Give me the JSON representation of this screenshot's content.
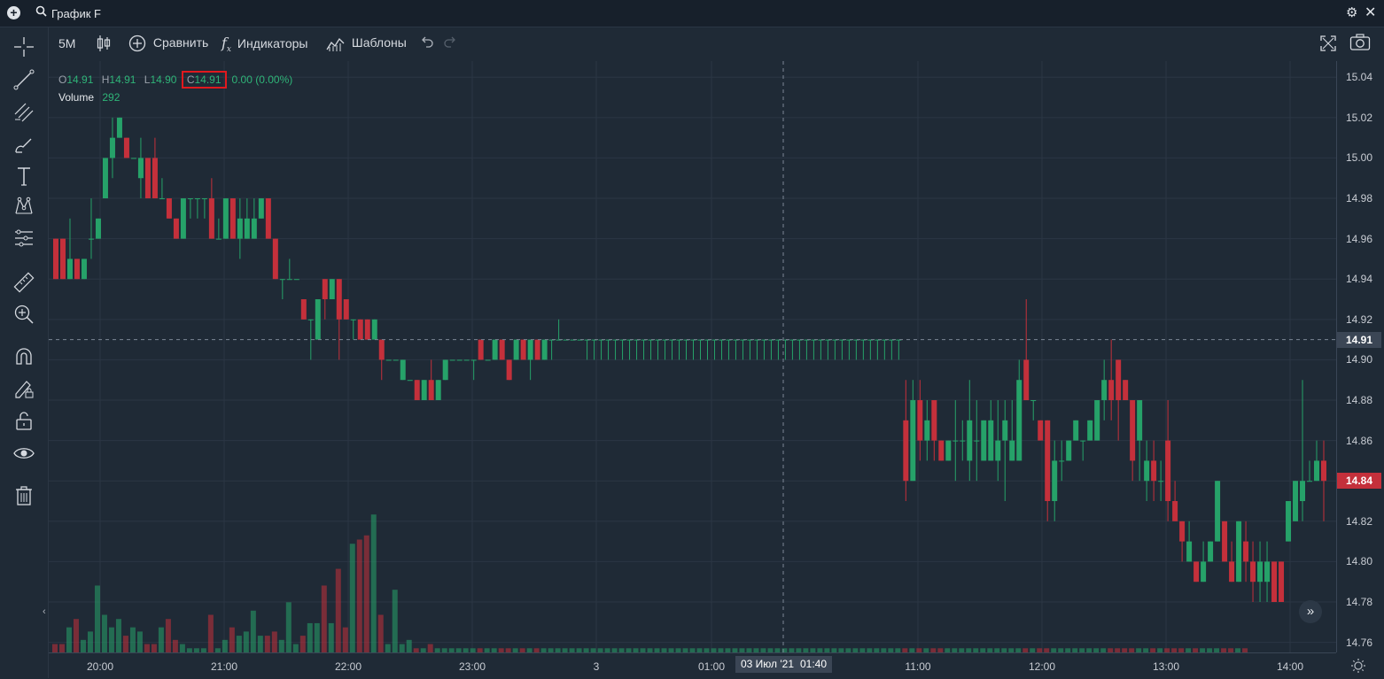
{
  "window": {
    "title": "График F"
  },
  "toolbar": {
    "interval": "5M",
    "compare_label": "Сравнить",
    "indicators_label": "Индикаторы",
    "templates_label": "Шаблоны"
  },
  "legend": {
    "open_key": "O",
    "open": "14.91",
    "high_key": "H",
    "high": "14.91",
    "low_key": "L",
    "low": "14.90",
    "close_key": "C",
    "close": "14.91",
    "change": "0.00 (0.00%)",
    "volume_label": "Volume",
    "volume_value": "292"
  },
  "price_badges": {
    "crosshair_price": "14.91",
    "last_price": "14.84"
  },
  "crosshair": {
    "date": "03 Июл '21",
    "time": "01:40"
  },
  "colors": {
    "up": "#26a269",
    "down": "#c4303b",
    "background": "#1f2a36",
    "grid": "#2b3644",
    "highlight": "#e0191e"
  },
  "chart_data": {
    "type": "candlestick",
    "y_ticks": [
      "15.04",
      "15.02",
      "15.00",
      "14.98",
      "14.96",
      "14.94",
      "14.92",
      "14.90",
      "14.88",
      "14.86",
      "14.84",
      "14.82",
      "14.80",
      "14.78",
      "14.76"
    ],
    "x_ticks": [
      "20:00",
      "21:00",
      "22:00",
      "23:00",
      "3",
      "01:00",
      "11:00",
      "12:00",
      "13:00",
      "14:00"
    ],
    "ylim": [
      14.755,
      15.048
    ],
    "candles": [
      [
        14.96,
        14.94,
        14.96,
        14.94
      ],
      [
        14.96,
        14.94,
        14.96,
        14.94
      ],
      [
        14.94,
        14.95,
        14.97,
        14.94
      ],
      [
        14.95,
        14.94,
        14.95,
        14.94
      ],
      [
        14.94,
        14.95,
        14.95,
        14.94
      ],
      [
        14.96,
        14.96,
        14.98,
        14.95
      ],
      [
        14.96,
        14.97,
        14.97,
        14.96
      ],
      [
        14.98,
        15.0,
        15.0,
        14.98
      ],
      [
        15.0,
        15.01,
        15.02,
        14.99
      ],
      [
        15.01,
        15.02,
        15.02,
        15.01
      ],
      [
        15.01,
        15.0,
        15.01,
        15.0
      ],
      [
        15.0,
        15.0,
        15.0,
        15.0
      ],
      [
        14.99,
        15.0,
        15.01,
        14.98
      ],
      [
        15.0,
        14.98,
        15.0,
        14.98
      ],
      [
        15.0,
        14.98,
        15.01,
        14.98
      ],
      [
        14.98,
        14.98,
        14.99,
        14.98
      ],
      [
        14.98,
        14.97,
        14.98,
        14.97
      ],
      [
        14.97,
        14.96,
        14.97,
        14.96
      ],
      [
        14.96,
        14.98,
        14.98,
        14.96
      ],
      [
        14.98,
        14.98,
        14.98,
        14.97
      ],
      [
        14.98,
        14.98,
        14.98,
        14.97
      ],
      [
        14.98,
        14.98,
        14.98,
        14.97
      ],
      [
        14.98,
        14.96,
        14.99,
        14.96
      ],
      [
        14.96,
        14.96,
        14.97,
        14.96
      ],
      [
        14.96,
        14.98,
        14.98,
        14.96
      ],
      [
        14.98,
        14.96,
        14.98,
        14.96
      ],
      [
        14.96,
        14.97,
        14.98,
        14.95
      ],
      [
        14.96,
        14.97,
        14.98,
        14.96
      ],
      [
        14.96,
        14.97,
        14.98,
        14.96
      ],
      [
        14.97,
        14.98,
        14.98,
        14.97
      ],
      [
        14.98,
        14.96,
        14.98,
        14.96
      ],
      [
        14.96,
        14.94,
        14.96,
        14.94
      ],
      [
        14.94,
        14.94,
        14.94,
        14.93
      ],
      [
        14.94,
        14.94,
        14.95,
        14.94
      ],
      [
        14.94,
        14.94,
        14.94,
        14.94
      ],
      [
        14.93,
        14.92,
        14.93,
        14.92
      ],
      [
        14.92,
        14.92,
        14.92,
        14.9
      ],
      [
        14.91,
        14.93,
        14.93,
        14.91
      ],
      [
        14.94,
        14.93,
        14.94,
        14.92
      ],
      [
        14.93,
        14.94,
        14.94,
        14.93
      ],
      [
        14.94,
        14.92,
        14.94,
        14.9
      ],
      [
        14.93,
        14.92,
        14.93,
        14.92
      ],
      [
        14.92,
        14.92,
        14.92,
        14.91
      ],
      [
        14.92,
        14.91,
        14.92,
        14.91
      ],
      [
        14.92,
        14.91,
        14.92,
        14.91
      ],
      [
        14.91,
        14.92,
        14.92,
        14.91
      ],
      [
        14.91,
        14.9,
        14.91,
        14.89
      ],
      [
        14.9,
        14.9,
        14.9,
        14.9
      ],
      [
        14.9,
        14.9,
        14.9,
        14.9
      ],
      [
        14.89,
        14.9,
        14.9,
        14.89
      ],
      [
        14.89,
        14.89,
        14.89,
        14.89
      ],
      [
        14.89,
        14.88,
        14.89,
        14.88
      ],
      [
        14.88,
        14.89,
        14.89,
        14.88
      ],
      [
        14.89,
        14.88,
        14.9,
        14.88
      ],
      [
        14.88,
        14.89,
        14.89,
        14.88
      ],
      [
        14.89,
        14.9,
        14.9,
        14.89
      ],
      [
        14.9,
        14.9,
        14.9,
        14.9
      ],
      [
        14.9,
        14.9,
        14.9,
        14.9
      ],
      [
        14.9,
        14.9,
        14.9,
        14.9
      ],
      [
        14.9,
        14.9,
        14.9,
        14.89
      ],
      [
        14.91,
        14.9,
        14.91,
        14.9
      ],
      [
        14.9,
        14.9,
        14.9,
        14.9
      ],
      [
        14.9,
        14.91,
        14.91,
        14.9
      ],
      [
        14.91,
        14.9,
        14.91,
        14.9
      ],
      [
        14.9,
        14.89,
        14.9,
        14.89
      ],
      [
        14.9,
        14.91,
        14.91,
        14.9
      ],
      [
        14.91,
        14.9,
        14.91,
        14.9
      ],
      [
        14.9,
        14.91,
        14.91,
        14.89
      ],
      [
        14.91,
        14.9,
        14.91,
        14.9
      ],
      [
        14.9,
        14.91,
        14.91,
        14.9
      ],
      [
        14.91,
        14.91,
        14.91,
        14.9
      ],
      [
        14.91,
        14.91,
        14.92,
        14.91
      ],
      [
        14.91,
        14.91,
        14.91,
        14.91
      ],
      [
        14.91,
        14.91,
        14.91,
        14.91
      ],
      [
        14.91,
        14.91,
        14.91,
        14.91
      ],
      [
        14.91,
        14.91,
        14.91,
        14.9
      ],
      [
        14.91,
        14.91,
        14.91,
        14.9
      ],
      [
        14.91,
        14.91,
        14.91,
        14.9
      ],
      [
        14.91,
        14.91,
        14.91,
        14.9
      ],
      [
        14.91,
        14.91,
        14.91,
        14.9
      ],
      [
        14.91,
        14.91,
        14.91,
        14.9
      ],
      [
        14.91,
        14.91,
        14.91,
        14.9
      ],
      [
        14.91,
        14.91,
        14.91,
        14.9
      ],
      [
        14.91,
        14.91,
        14.91,
        14.9
      ],
      [
        14.91,
        14.91,
        14.91,
        14.9
      ],
      [
        14.91,
        14.91,
        14.91,
        14.9
      ],
      [
        14.91,
        14.91,
        14.91,
        14.9
      ],
      [
        14.91,
        14.91,
        14.91,
        14.9
      ],
      [
        14.91,
        14.91,
        14.91,
        14.9
      ],
      [
        14.91,
        14.91,
        14.91,
        14.9
      ],
      [
        14.91,
        14.91,
        14.91,
        14.9
      ],
      [
        14.91,
        14.91,
        14.91,
        14.9
      ],
      [
        14.91,
        14.91,
        14.91,
        14.9
      ],
      [
        14.91,
        14.91,
        14.91,
        14.9
      ],
      [
        14.91,
        14.91,
        14.91,
        14.9
      ],
      [
        14.91,
        14.91,
        14.91,
        14.9
      ],
      [
        14.91,
        14.91,
        14.91,
        14.9
      ],
      [
        14.91,
        14.91,
        14.91,
        14.9
      ],
      [
        14.91,
        14.91,
        14.91,
        14.9
      ],
      [
        14.91,
        14.91,
        14.91,
        14.9
      ],
      [
        14.91,
        14.91,
        14.91,
        14.9
      ],
      [
        14.91,
        14.91,
        14.91,
        14.9
      ],
      [
        14.91,
        14.91,
        14.91,
        14.9
      ],
      [
        14.91,
        14.91,
        14.91,
        14.9
      ],
      [
        14.91,
        14.91,
        14.91,
        14.9
      ],
      [
        14.91,
        14.91,
        14.91,
        14.9
      ],
      [
        14.91,
        14.91,
        14.91,
        14.9
      ],
      [
        14.91,
        14.91,
        14.91,
        14.9
      ],
      [
        14.91,
        14.91,
        14.91,
        14.9
      ],
      [
        14.91,
        14.91,
        14.91,
        14.9
      ],
      [
        14.91,
        14.91,
        14.91,
        14.9
      ],
      [
        14.91,
        14.91,
        14.91,
        14.9
      ],
      [
        14.91,
        14.91,
        14.91,
        14.9
      ],
      [
        14.91,
        14.91,
        14.91,
        14.9
      ],
      [
        14.91,
        14.91,
        14.91,
        14.9
      ],
      [
        14.91,
        14.91,
        14.91,
        14.9
      ],
      [
        14.91,
        14.91,
        14.91,
        14.9
      ],
      [
        14.91,
        14.91,
        14.91,
        14.9
      ],
      [
        14.91,
        14.91,
        14.91,
        14.9
      ],
      [
        14.91,
        14.91,
        14.91,
        14.9
      ],
      [
        14.87,
        14.84,
        14.89,
        14.83
      ],
      [
        14.84,
        14.88,
        14.89,
        14.84
      ],
      [
        14.88,
        14.86,
        14.89,
        14.85
      ],
      [
        14.86,
        14.87,
        14.88,
        14.85
      ],
      [
        14.88,
        14.86,
        14.88,
        14.85
      ],
      [
        14.86,
        14.85,
        14.86,
        14.85
      ],
      [
        14.85,
        14.86,
        14.86,
        14.85
      ],
      [
        14.86,
        14.86,
        14.88,
        14.84
      ],
      [
        14.86,
        14.86,
        14.87,
        14.85
      ],
      [
        14.85,
        14.87,
        14.89,
        14.84
      ],
      [
        14.86,
        14.86,
        14.88,
        14.84
      ],
      [
        14.85,
        14.87,
        14.87,
        14.85
      ],
      [
        14.85,
        14.87,
        14.88,
        14.85
      ],
      [
        14.85,
        14.86,
        14.88,
        14.84
      ],
      [
        14.86,
        14.87,
        14.88,
        14.83
      ],
      [
        14.85,
        14.86,
        14.88,
        14.85
      ],
      [
        14.85,
        14.89,
        14.9,
        14.85
      ],
      [
        14.9,
        14.88,
        14.93,
        14.88
      ],
      [
        14.88,
        14.88,
        14.88,
        14.87
      ],
      [
        14.87,
        14.86,
        14.87,
        14.86
      ],
      [
        14.87,
        14.83,
        14.87,
        14.82
      ],
      [
        14.83,
        14.85,
        14.86,
        14.82
      ],
      [
        14.85,
        14.85,
        14.86,
        14.84
      ],
      [
        14.85,
        14.86,
        14.86,
        14.85
      ],
      [
        14.86,
        14.87,
        14.87,
        14.86
      ],
      [
        14.86,
        14.86,
        14.86,
        14.85
      ],
      [
        14.86,
        14.87,
        14.87,
        14.86
      ],
      [
        14.86,
        14.88,
        14.88,
        14.86
      ],
      [
        14.88,
        14.89,
        14.9,
        14.87
      ],
      [
        14.89,
        14.88,
        14.91,
        14.87
      ],
      [
        14.9,
        14.88,
        14.9,
        14.86
      ],
      [
        14.89,
        14.88,
        14.89,
        14.88
      ],
      [
        14.88,
        14.85,
        14.88,
        14.84
      ],
      [
        14.86,
        14.88,
        14.88,
        14.84
      ],
      [
        14.84,
        14.85,
        14.86,
        14.83
      ],
      [
        14.85,
        14.84,
        14.86,
        14.83
      ],
      [
        14.84,
        14.84,
        14.85,
        14.83
      ],
      [
        14.86,
        14.83,
        14.88,
        14.82
      ],
      [
        14.83,
        14.82,
        14.84,
        14.82
      ],
      [
        14.82,
        14.81,
        14.82,
        14.8
      ],
      [
        14.8,
        14.81,
        14.82,
        14.8
      ],
      [
        14.8,
        14.79,
        14.8,
        14.79
      ],
      [
        14.79,
        14.8,
        14.81,
        14.79
      ],
      [
        14.8,
        14.81,
        14.81,
        14.8
      ],
      [
        14.81,
        14.84,
        14.84,
        14.81
      ],
      [
        14.82,
        14.8,
        14.82,
        14.8
      ],
      [
        14.8,
        14.79,
        14.81,
        14.79
      ],
      [
        14.79,
        14.82,
        14.82,
        14.79
      ],
      [
        14.81,
        14.8,
        14.82,
        14.79
      ],
      [
        14.8,
        14.79,
        14.81,
        14.78
      ],
      [
        14.79,
        14.8,
        14.81,
        14.78
      ],
      [
        14.79,
        14.8,
        14.81,
        14.78
      ],
      [
        14.8,
        14.78,
        14.8,
        14.78
      ],
      [
        14.8,
        14.78,
        14.8,
        14.78
      ],
      [
        14.81,
        14.83,
        14.83,
        14.81
      ],
      [
        14.82,
        14.84,
        14.84,
        14.82
      ],
      [
        14.83,
        14.84,
        14.89,
        14.82
      ],
      [
        14.84,
        14.84,
        14.85,
        14.84
      ],
      [
        14.84,
        14.85,
        14.86,
        14.84
      ],
      [
        14.85,
        14.84,
        14.86,
        14.82
      ]
    ],
    "volumes": [
      2,
      2,
      6,
      8,
      3,
      5,
      16,
      9,
      6,
      8,
      4,
      6,
      5,
      2,
      2,
      6,
      8,
      3,
      2,
      1,
      1,
      1,
      9,
      1,
      3,
      6,
      4,
      5,
      10,
      4,
      4,
      5,
      3,
      12,
      2,
      4,
      7,
      7,
      16,
      7,
      20,
      6,
      26,
      27,
      28,
      33,
      9,
      2,
      15,
      2,
      3,
      1,
      1,
      2,
      1,
      1,
      1,
      1,
      1,
      1,
      1,
      1,
      1,
      1,
      1,
      1,
      1,
      1,
      1,
      1,
      1,
      1,
      1,
      1,
      1,
      1,
      1,
      1,
      1,
      1,
      1,
      1,
      1,
      1,
      1,
      1,
      1,
      1,
      1,
      1,
      1,
      1,
      1,
      1,
      1,
      1,
      1,
      1,
      1,
      1,
      1,
      1,
      1,
      1,
      1,
      1,
      1,
      1,
      1,
      1,
      1,
      1,
      1,
      1,
      1,
      1,
      1,
      1,
      1,
      1,
      1,
      1,
      1,
      1,
      1,
      1,
      1,
      1,
      1,
      1,
      1,
      1,
      1,
      1,
      1,
      1,
      1,
      1,
      1,
      1,
      1,
      1,
      1,
      1,
      1,
      1,
      1,
      1,
      1,
      1,
      1,
      1,
      1,
      1,
      1,
      1,
      1,
      1,
      1,
      1,
      1,
      1,
      1,
      1,
      1,
      1,
      1,
      1,
      1
    ],
    "volume_max": 36
  }
}
